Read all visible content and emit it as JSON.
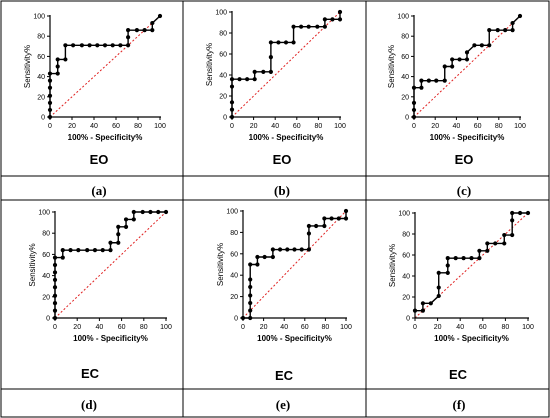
{
  "figure": {
    "border_color": "#000000",
    "line_color": "#000000",
    "diagonal_color": "#e02020"
  },
  "chart_data": [
    {
      "type": "line",
      "panel": "(a)",
      "condition": "EO",
      "xlabel": "100% - Specificity%",
      "ylabel": "Sensitivity%",
      "xlim": [
        0,
        100
      ],
      "ylim": [
        0,
        100
      ],
      "xticks": [
        0,
        20,
        40,
        60,
        80,
        100
      ],
      "yticks": [
        0,
        20,
        40,
        60,
        80,
        100
      ],
      "diagonal": true,
      "x": [
        0,
        0,
        0,
        0,
        0,
        0,
        0,
        7,
        7,
        7,
        14,
        14,
        21,
        29,
        36,
        43,
        50,
        57,
        64,
        71,
        71,
        71,
        79,
        86,
        93,
        93,
        100
      ],
      "y": [
        0,
        7,
        14,
        21,
        29,
        36,
        43,
        43,
        50,
        57,
        57,
        71,
        71,
        71,
        71,
        71,
        71,
        71,
        71,
        71,
        79,
        86,
        86,
        86,
        86,
        93,
        100
      ]
    },
    {
      "type": "line",
      "panel": "(b)",
      "condition": "EO",
      "xlabel": "100% - Specificity%",
      "ylabel": "Sensitivity%",
      "xlim": [
        0,
        100
      ],
      "ylim": [
        0,
        100
      ],
      "xticks": [
        0,
        20,
        40,
        60,
        80,
        100
      ],
      "yticks": [
        0,
        20,
        40,
        60,
        80,
        100
      ],
      "diagonal": true,
      "x": [
        0,
        0,
        0,
        0,
        0,
        7,
        14,
        21,
        21,
        29,
        36,
        36,
        36,
        43,
        50,
        57,
        57,
        64,
        71,
        79,
        86,
        86,
        93,
        100,
        100
      ],
      "y": [
        0,
        7,
        14,
        29,
        36,
        36,
        36,
        36,
        43,
        43,
        43,
        57,
        71,
        71,
        71,
        71,
        86,
        86,
        86,
        86,
        86,
        93,
        93,
        93,
        100
      ]
    },
    {
      "type": "line",
      "panel": "(c)",
      "condition": "EO",
      "xlabel": "100% - Specificity%",
      "ylabel": "Sensitivity%",
      "xlim": [
        0,
        100
      ],
      "ylim": [
        0,
        100
      ],
      "xticks": [
        0,
        20,
        40,
        60,
        80,
        100
      ],
      "yticks": [
        0,
        20,
        40,
        60,
        80,
        100
      ],
      "diagonal": true,
      "x": [
        0,
        0,
        0,
        0,
        7,
        7,
        14,
        21,
        29,
        29,
        36,
        36,
        43,
        50,
        50,
        57,
        64,
        71,
        71,
        79,
        86,
        93,
        93,
        100
      ],
      "y": [
        0,
        7,
        14,
        29,
        29,
        36,
        36,
        36,
        36,
        50,
        50,
        57,
        57,
        57,
        64,
        71,
        71,
        71,
        86,
        86,
        86,
        86,
        93,
        100
      ]
    },
    {
      "type": "line",
      "panel": "(d)",
      "condition": "EC",
      "xlabel": "100% - Specificity%",
      "ylabel": "Sensitivity%",
      "xlim": [
        0,
        100
      ],
      "ylim": [
        0,
        100
      ],
      "xticks": [
        0,
        20,
        40,
        60,
        80,
        100
      ],
      "yticks": [
        0,
        20,
        40,
        60,
        80,
        100
      ],
      "diagonal": true,
      "x": [
        0,
        0,
        0,
        0,
        0,
        0,
        0,
        0,
        0,
        7,
        7,
        14,
        21,
        29,
        36,
        43,
        50,
        50,
        57,
        57,
        57,
        64,
        64,
        71,
        71,
        79,
        86,
        93,
        100
      ],
      "y": [
        0,
        7,
        14,
        21,
        29,
        36,
        43,
        50,
        57,
        57,
        64,
        64,
        64,
        64,
        64,
        64,
        64,
        71,
        71,
        79,
        86,
        86,
        93,
        93,
        100,
        100,
        100,
        100,
        100
      ]
    },
    {
      "type": "line",
      "panel": "(e)",
      "condition": "EC",
      "xlabel": "100% - Specificity%",
      "ylabel": "Sensitivity%",
      "xlim": [
        0,
        100
      ],
      "ylim": [
        0,
        100
      ],
      "xticks": [
        0,
        20,
        40,
        60,
        80,
        100
      ],
      "yticks": [
        0,
        20,
        40,
        60,
        80,
        100
      ],
      "diagonal": true,
      "x": [
        0,
        7,
        7,
        7,
        7,
        7,
        7,
        7,
        14,
        14,
        21,
        29,
        29,
        36,
        43,
        50,
        57,
        64,
        64,
        64,
        71,
        79,
        79,
        86,
        93,
        100,
        100
      ],
      "y": [
        0,
        0,
        7,
        14,
        21,
        29,
        36,
        50,
        50,
        57,
        57,
        57,
        64,
        64,
        64,
        64,
        64,
        64,
        79,
        86,
        86,
        86,
        93,
        93,
        93,
        93,
        100
      ]
    },
    {
      "type": "line",
      "panel": "(f)",
      "condition": "EC",
      "xlabel": "100% - Specificity%",
      "ylabel": "Sensitivity%",
      "xlim": [
        0,
        100
      ],
      "ylim": [
        0,
        100
      ],
      "xticks": [
        0,
        20,
        40,
        60,
        80,
        100
      ],
      "yticks": [
        0,
        20,
        40,
        60,
        80,
        100
      ],
      "diagonal": true,
      "x": [
        0,
        7,
        7,
        14,
        21,
        21,
        21,
        29,
        29,
        29,
        36,
        43,
        50,
        57,
        57,
        64,
        64,
        71,
        79,
        79,
        86,
        86,
        86,
        93,
        100
      ],
      "y": [
        7,
        7,
        14,
        14,
        21,
        29,
        43,
        43,
        50,
        57,
        57,
        57,
        57,
        57,
        64,
        64,
        71,
        71,
        71,
        79,
        79,
        93,
        100,
        100,
        100
      ]
    }
  ]
}
